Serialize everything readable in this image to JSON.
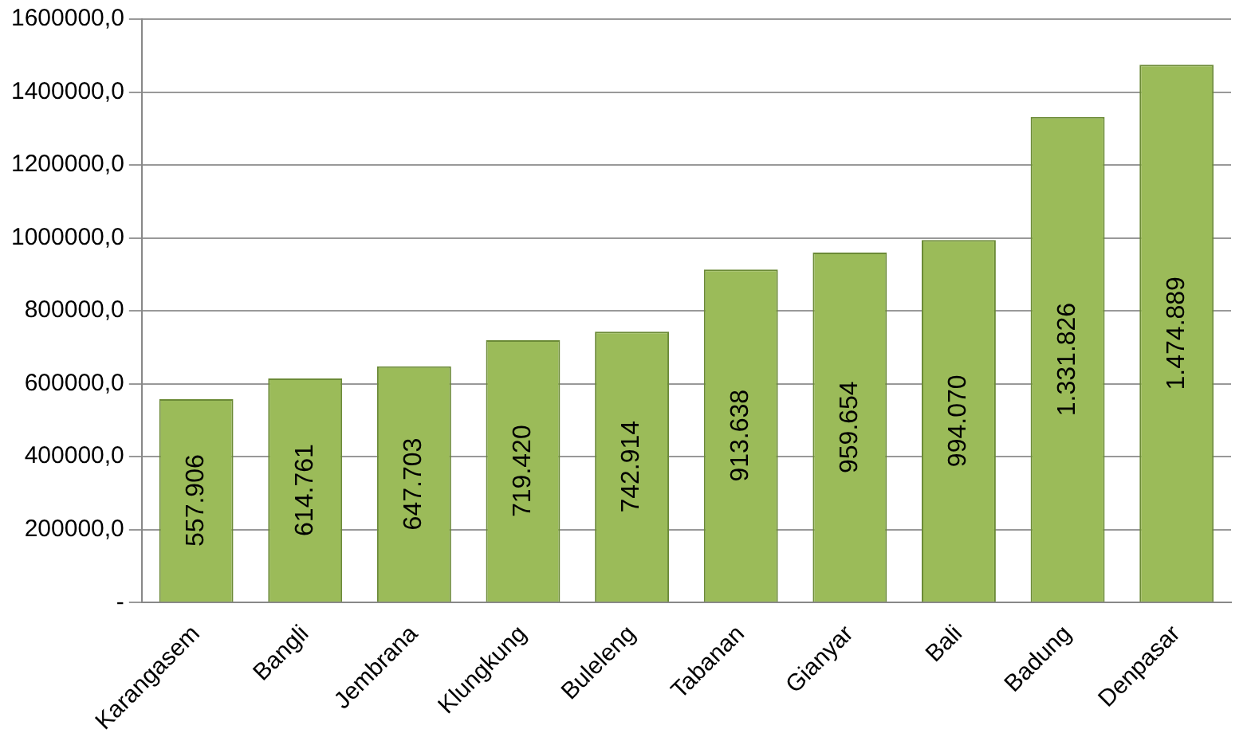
{
  "chart_data": {
    "type": "bar",
    "categories": [
      "Karangasem",
      "Bangli",
      "Jembrana",
      "Klungkung",
      "Buleleng",
      "Tabanan",
      "Gianyar",
      "Bali",
      "Badung",
      "Denpasar"
    ],
    "values": [
      557906,
      614761,
      647703,
      719420,
      742914,
      913638,
      959654,
      994070,
      1331826,
      1474889
    ],
    "value_labels": [
      "557.906",
      "614.761",
      "647.703",
      "719.420",
      "742.914",
      "913.638",
      "959.654",
      "994.070",
      "1.331.826",
      "1.474.889"
    ],
    "color": "#9bbb59",
    "ylim": [
      0,
      1600000
    ],
    "yticks": [
      {
        "value": 0,
        "label": "-"
      },
      {
        "value": 200000,
        "label": "200000,0"
      },
      {
        "value": 400000,
        "label": "400000,0"
      },
      {
        "value": 600000,
        "label": "600000,0"
      },
      {
        "value": 800000,
        "label": "800000,0"
      },
      {
        "value": 1000000,
        "label": "1000000,0"
      },
      {
        "value": 1200000,
        "label": "1200000,0"
      },
      {
        "value": 1400000,
        "label": "1400000,0"
      },
      {
        "value": 1600000,
        "label": "1600000,0"
      }
    ],
    "grid": "y",
    "legend": false
  }
}
